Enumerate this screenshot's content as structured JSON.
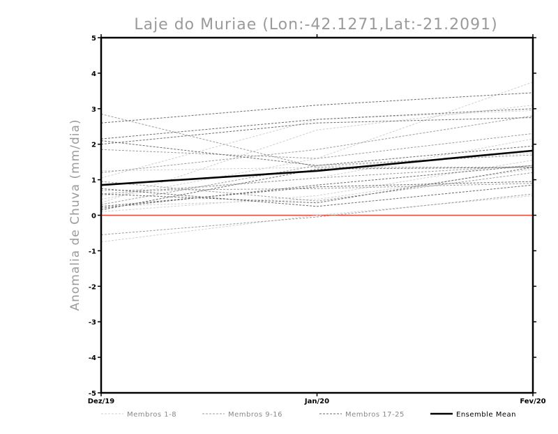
{
  "chart_data": {
    "type": "line",
    "title": "Laje do Muriae (Lon:-42.1271,Lat:-21.2091)",
    "xlabel": "",
    "ylabel": "Anomalia de Chuva (mm/dia)",
    "x_categories": [
      "Dez/19",
      "Jan/20",
      "Fev/20"
    ],
    "ylim": [
      -5,
      5
    ],
    "y_ticks": [
      "5",
      "4",
      "3",
      "2",
      "1",
      "0",
      "-1",
      "-2",
      "-3",
      "-4",
      "-5"
    ],
    "grid": false,
    "zero_line_color": "#e8463a",
    "legend": [
      {
        "name": "Membros 1-8",
        "color": "#cfcfcf",
        "style": "dashed"
      },
      {
        "name": "Membros 9-16",
        "color": "#9c9c9c",
        "style": "dashed"
      },
      {
        "name": "Membros 17-25",
        "color": "#6a6a6a",
        "style": "dashed"
      },
      {
        "name": "Ensemble Mean",
        "color": "#000000",
        "style": "solid"
      }
    ],
    "legend_placement": "bottom",
    "series": [
      {
        "group": "Membros 1-8",
        "values": [
          -0.75,
          0.0,
          0.55
        ]
      },
      {
        "group": "Membros 1-8",
        "values": [
          0.45,
          1.6,
          3.75
        ]
      },
      {
        "group": "Membros 1-8",
        "values": [
          0.35,
          2.4,
          3.1
        ]
      },
      {
        "group": "Membros 1-8",
        "values": [
          1.05,
          2.7,
          2.95
        ]
      },
      {
        "group": "Membros 1-8",
        "values": [
          0.25,
          0.45,
          1.3
        ]
      },
      {
        "group": "Membros 1-8",
        "values": [
          0.55,
          1.05,
          2.15
        ]
      },
      {
        "group": "Membros 1-8",
        "values": [
          1.25,
          1.35,
          1.75
        ]
      },
      {
        "group": "Membros 1-8",
        "values": [
          0.1,
          0.55,
          1.55
        ]
      },
      {
        "group": "Membros 9-16",
        "values": [
          -0.55,
          -0.05,
          0.6
        ]
      },
      {
        "group": "Membros 9-16",
        "values": [
          2.85,
          1.35,
          1.35
        ]
      },
      {
        "group": "Membros 9-16",
        "values": [
          1.85,
          1.6,
          2.3
        ]
      },
      {
        "group": "Membros 9-16",
        "values": [
          1.2,
          1.85,
          2.8
        ]
      },
      {
        "group": "Membros 9-16",
        "values": [
          0.6,
          1.05,
          1.4
        ]
      },
      {
        "group": "Membros 9-16",
        "values": [
          0.3,
          1.4,
          1.7
        ]
      },
      {
        "group": "Membros 9-16",
        "values": [
          0.7,
          0.75,
          0.9
        ]
      },
      {
        "group": "Membros 9-16",
        "values": [
          0.95,
          0.4,
          1.2
        ]
      },
      {
        "group": "Membros 17-25",
        "values": [
          2.6,
          3.1,
          3.45
        ]
      },
      {
        "group": "Membros 17-25",
        "values": [
          2.15,
          2.7,
          3.0
        ]
      },
      {
        "group": "Membros 17-25",
        "values": [
          2.1,
          1.4,
          1.95
        ]
      },
      {
        "group": "Membros 17-25",
        "values": [
          2.0,
          2.6,
          2.75
        ]
      },
      {
        "group": "Membros 17-25",
        "values": [
          0.2,
          0.85,
          1.4
        ]
      },
      {
        "group": "Membros 17-25",
        "values": [
          0.75,
          0.25,
          0.85
        ]
      },
      {
        "group": "Membros 17-25",
        "values": [
          0.15,
          1.3,
          1.35
        ]
      },
      {
        "group": "Membros 17-25",
        "values": [
          0.25,
          0.8,
          0.95
        ]
      },
      {
        "group": "Membros 17-25",
        "values": [
          0.6,
          0.35,
          1.35
        ]
      },
      {
        "group": "Ensemble Mean",
        "values": [
          0.85,
          1.25,
          1.82
        ]
      }
    ]
  }
}
